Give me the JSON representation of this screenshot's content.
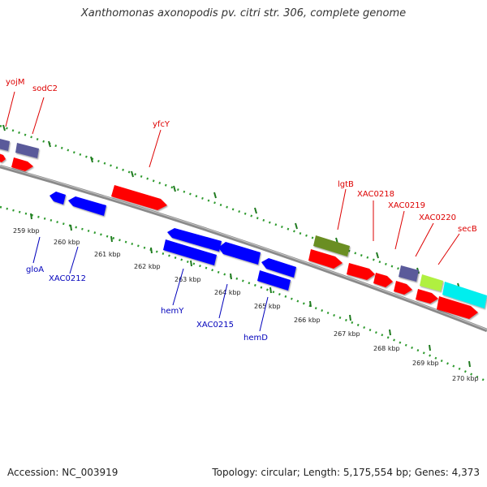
{
  "title": "Xanthomonas axonopodis pv. citri str. 306, complete genome",
  "footer": {
    "accession": "Accession: NC_003919",
    "summary": "Topology: circular; Length: 5,175,554 bp; Genes: 4,373"
  },
  "colors": {
    "backbone": "#8a8a8a",
    "tick_dark": "#1f7a1f",
    "tick_dot": "#2e9a2e",
    "forward_label": "#dd0000",
    "reverse_label": "#0000bb",
    "forward_gene": "#ff0000",
    "reverse_gene": "#0000ff",
    "purple_gene": "#5a5a9a",
    "olive_gene": "#6b8e23",
    "lime_gene": "#b0f040",
    "cyan_gene": "#00eeee"
  },
  "scale_labels": [
    "259 kbp",
    "260 kbp",
    "261 kbp",
    "262 kbp",
    "263 kbp",
    "264 kbp",
    "265 kbp",
    "266 kbp",
    "267 kbp",
    "268 kbp",
    "269 kbp",
    "270 kbp"
  ],
  "forward_gene_labels": [
    "yojM",
    "sodC2",
    "yfcY",
    "lgtB",
    "XAC0218",
    "XAC0219",
    "XAC0220",
    "secB"
  ],
  "reverse_gene_labels": [
    "gloA",
    "XAC0212",
    "hemY",
    "XAC0215",
    "hemD"
  ]
}
